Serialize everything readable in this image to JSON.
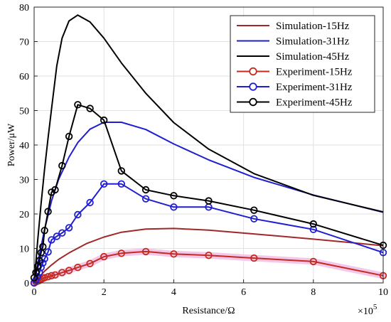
{
  "chart_data": {
    "type": "line",
    "xlabel": "Resistance/Ω",
    "ylabel": "Power/μW",
    "x_exponent_label": "×10",
    "x_exponent_power": "5",
    "xlim": [
      0,
      10
    ],
    "ylim": [
      0,
      80
    ],
    "xticks": [
      0,
      2,
      4,
      6,
      8,
      10
    ],
    "yticks": [
      0,
      10,
      20,
      30,
      40,
      50,
      60,
      70,
      80
    ],
    "grid": true,
    "legend_position": "top-right",
    "series": [
      {
        "name": "Simulation-15Hz",
        "color": "#a02828",
        "style": "line",
        "x": [
          0,
          0.05,
          0.1,
          0.2,
          0.3,
          0.5,
          0.7,
          1.0,
          1.5,
          2.0,
          2.5,
          3.2,
          4.0,
          5.0,
          6.3,
          8.0,
          10.0
        ],
        "y": [
          0,
          0.6,
          1.2,
          2.3,
          3.4,
          5.2,
          6.8,
          8.7,
          11.4,
          13.3,
          14.7,
          15.6,
          15.8,
          15.3,
          14.2,
          12.7,
          10.8
        ]
      },
      {
        "name": "Simulation-31Hz",
        "color": "#1f1fd1",
        "style": "line",
        "x": [
          0,
          0.05,
          0.1,
          0.2,
          0.3,
          0.5,
          0.7,
          1.0,
          1.25,
          1.6,
          2.0,
          2.5,
          3.2,
          4.0,
          5.0,
          6.3,
          8.0,
          10.0
        ],
        "y": [
          0,
          2.8,
          5.5,
          10.5,
          15.5,
          23.8,
          30.0,
          36.5,
          40.7,
          44.6,
          46.6,
          46.6,
          44.5,
          40.3,
          35.7,
          30.6,
          25.5,
          20.5
        ]
      },
      {
        "name": "Simulation-45Hz",
        "color": "#000000",
        "style": "line",
        "x": [
          0,
          0.05,
          0.1,
          0.2,
          0.3,
          0.4,
          0.5,
          0.65,
          0.8,
          1.0,
          1.25,
          1.6,
          2.0,
          2.5,
          3.2,
          4.0,
          5.0,
          6.3,
          8.0,
          10.0
        ],
        "y": [
          0,
          6.0,
          12.0,
          23.0,
          33.0,
          42.0,
          50.5,
          63.0,
          71.0,
          76.0,
          77.7,
          75.7,
          71.0,
          63.8,
          55.0,
          46.5,
          38.8,
          31.7,
          25.4,
          20.6
        ]
      },
      {
        "name": "Experiment-15Hz",
        "color": "#c42a1e",
        "style": "line-circle",
        "x": [
          0,
          0.05,
          0.1,
          0.15,
          0.2,
          0.25,
          0.3,
          0.4,
          0.5,
          0.6,
          0.8,
          1.0,
          1.25,
          1.6,
          2.0,
          2.5,
          3.2,
          4.0,
          5.0,
          6.3,
          8.0,
          10.0
        ],
        "y": [
          0,
          0.3,
          0.5,
          0.7,
          1.0,
          1.3,
          1.5,
          1.8,
          2.1,
          2.3,
          3.0,
          3.6,
          4.5,
          5.6,
          7.6,
          8.6,
          9.1,
          8.4,
          8.0,
          7.2,
          6.2,
          2.1
        ]
      },
      {
        "name": "Experiment-31Hz",
        "color": "#1f1fd1",
        "style": "line-circle",
        "x": [
          0,
          0.05,
          0.1,
          0.15,
          0.2,
          0.25,
          0.3,
          0.4,
          0.5,
          0.65,
          0.8,
          1.0,
          1.25,
          1.6,
          2.0,
          2.5,
          3.2,
          4.0,
          5.0,
          6.3,
          8.0,
          10.0
        ],
        "y": [
          0,
          0.8,
          1.8,
          3.0,
          4.5,
          5.8,
          7.0,
          9.0,
          12.5,
          13.5,
          14.5,
          16.0,
          19.8,
          23.3,
          28.7,
          28.7,
          24.4,
          22.0,
          22.0,
          18.6,
          15.5,
          8.8
        ]
      },
      {
        "name": "Experiment-45Hz",
        "color": "#000000",
        "style": "line-circle",
        "x": [
          0,
          0.05,
          0.1,
          0.15,
          0.2,
          0.25,
          0.3,
          0.4,
          0.5,
          0.6,
          0.8,
          1.0,
          1.25,
          1.6,
          2.0,
          2.5,
          3.2,
          4.0,
          5.0,
          6.3,
          8.0,
          10.0
        ],
        "y": [
          1.5,
          3.0,
          4.8,
          6.5,
          8.8,
          10.5,
          15.2,
          20.7,
          26.3,
          27.0,
          34.0,
          42.5,
          51.7,
          50.6,
          47.2,
          32.5,
          27.0,
          25.3,
          23.8,
          21.1,
          17.1,
          10.9
        ]
      }
    ]
  }
}
